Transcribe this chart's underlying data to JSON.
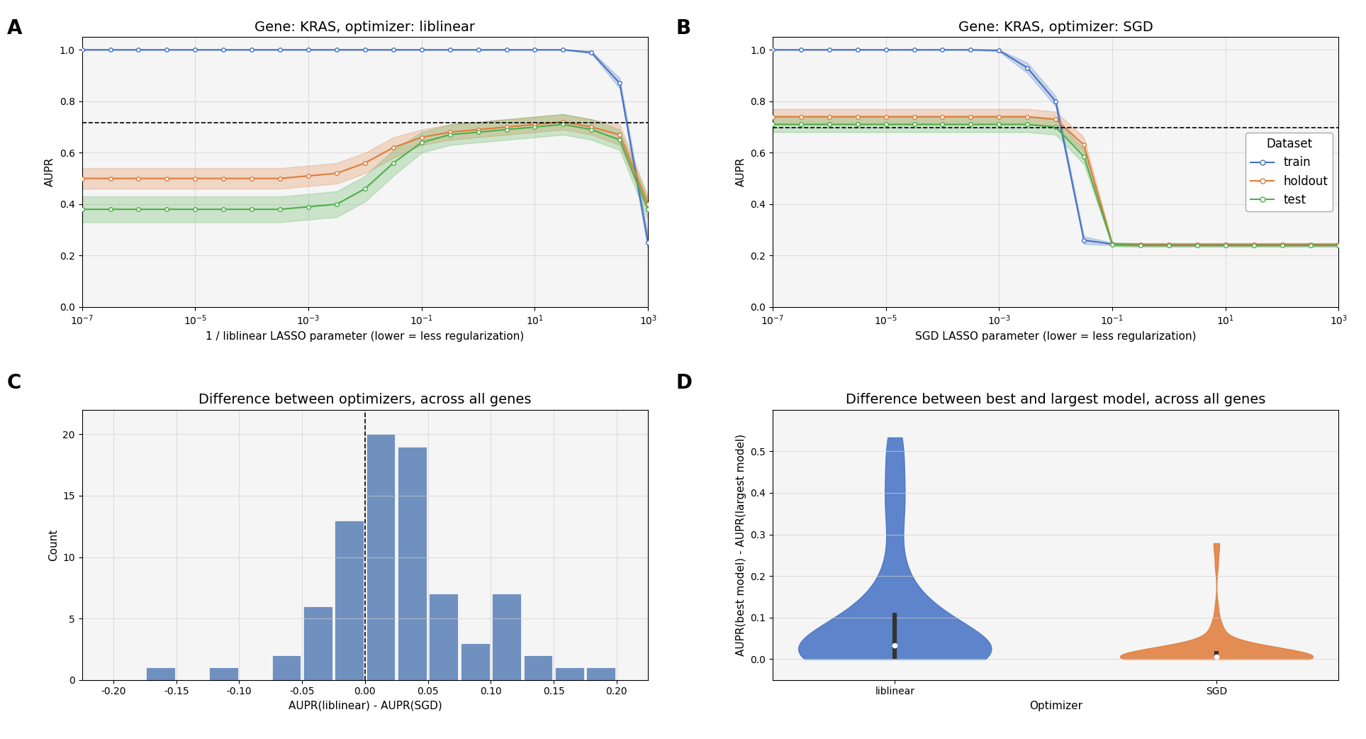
{
  "panel_A": {
    "title": "Gene: KRAS, optimizer: liblinear",
    "xlabel": "1 / liblinear LASSO parameter (lower = less regularization)",
    "ylabel": "AUPR",
    "ylim": [
      0.0,
      1.05
    ],
    "dashed_line_y": 0.718,
    "train": {
      "x": [
        -7,
        -6.5,
        -6,
        -5.5,
        -5,
        -4.5,
        -4,
        -3.5,
        -3,
        -2.5,
        -2,
        -1.5,
        -1,
        -0.5,
        0,
        0.5,
        1,
        1.5,
        2,
        2.5,
        3
      ],
      "y": [
        1.0,
        1.0,
        1.0,
        1.0,
        1.0,
        1.0,
        1.0,
        1.0,
        1.0,
        1.0,
        1.0,
        1.0,
        1.0,
        1.0,
        1.0,
        1.0,
        1.0,
        1.0,
        0.99,
        0.87,
        0.25
      ],
      "y_lower": [
        1.0,
        1.0,
        1.0,
        1.0,
        1.0,
        1.0,
        1.0,
        1.0,
        1.0,
        1.0,
        1.0,
        1.0,
        1.0,
        1.0,
        1.0,
        1.0,
        1.0,
        1.0,
        0.985,
        0.85,
        0.22
      ],
      "y_upper": [
        1.0,
        1.0,
        1.0,
        1.0,
        1.0,
        1.0,
        1.0,
        1.0,
        1.0,
        1.0,
        1.0,
        1.0,
        1.0,
        1.0,
        1.0,
        1.0,
        1.0,
        1.0,
        0.995,
        0.89,
        0.28
      ],
      "color": "#4472C4"
    },
    "holdout": {
      "x": [
        -7,
        -6.5,
        -6,
        -5.5,
        -5,
        -4.5,
        -4,
        -3.5,
        -3,
        -2.5,
        -2,
        -1.5,
        -1,
        -0.5,
        0,
        0.5,
        1,
        1.5,
        2,
        2.5,
        3
      ],
      "y": [
        0.5,
        0.5,
        0.5,
        0.5,
        0.5,
        0.5,
        0.5,
        0.5,
        0.51,
        0.52,
        0.56,
        0.62,
        0.66,
        0.68,
        0.69,
        0.7,
        0.71,
        0.72,
        0.7,
        0.67,
        0.4
      ],
      "y_lower": [
        0.46,
        0.46,
        0.46,
        0.46,
        0.46,
        0.46,
        0.46,
        0.46,
        0.47,
        0.48,
        0.52,
        0.58,
        0.63,
        0.65,
        0.66,
        0.67,
        0.68,
        0.69,
        0.67,
        0.63,
        0.37
      ],
      "y_upper": [
        0.54,
        0.54,
        0.54,
        0.54,
        0.54,
        0.54,
        0.54,
        0.54,
        0.55,
        0.56,
        0.6,
        0.66,
        0.69,
        0.71,
        0.72,
        0.73,
        0.74,
        0.75,
        0.73,
        0.71,
        0.43
      ],
      "color": "#E07B39"
    },
    "test": {
      "x": [
        -7,
        -6.5,
        -6,
        -5.5,
        -5,
        -4.5,
        -4,
        -3.5,
        -3,
        -2.5,
        -2,
        -1.5,
        -1,
        -0.5,
        0,
        0.5,
        1,
        1.5,
        2,
        2.5,
        3
      ],
      "y": [
        0.38,
        0.38,
        0.38,
        0.38,
        0.38,
        0.38,
        0.38,
        0.38,
        0.39,
        0.4,
        0.46,
        0.56,
        0.64,
        0.67,
        0.68,
        0.69,
        0.7,
        0.71,
        0.69,
        0.65,
        0.38
      ],
      "y_lower": [
        0.33,
        0.33,
        0.33,
        0.33,
        0.33,
        0.33,
        0.33,
        0.33,
        0.34,
        0.35,
        0.41,
        0.51,
        0.6,
        0.63,
        0.64,
        0.65,
        0.66,
        0.67,
        0.65,
        0.61,
        0.34
      ],
      "y_upper": [
        0.43,
        0.43,
        0.43,
        0.43,
        0.43,
        0.43,
        0.43,
        0.43,
        0.44,
        0.45,
        0.51,
        0.61,
        0.68,
        0.71,
        0.72,
        0.73,
        0.74,
        0.75,
        0.73,
        0.69,
        0.42
      ],
      "color": "#4DAF4A"
    }
  },
  "panel_B": {
    "title": "Gene: KRAS, optimizer: SGD",
    "xlabel": "SGD LASSO parameter (lower = less regularization)",
    "ylabel": "AUPR",
    "ylim": [
      0.0,
      1.05
    ],
    "dashed_line_y": 0.697,
    "train": {
      "x": [
        -7,
        -6.5,
        -6,
        -5.5,
        -5,
        -4.5,
        -4,
        -3.5,
        -3,
        -2.5,
        -2,
        -1.5,
        -1,
        -0.5,
        0,
        0.5,
        1,
        1.5,
        2,
        2.5,
        3
      ],
      "y": [
        1.0,
        1.0,
        1.0,
        1.0,
        1.0,
        1.0,
        1.0,
        1.0,
        0.998,
        0.93,
        0.8,
        0.26,
        0.245,
        0.243,
        0.243,
        0.243,
        0.243,
        0.243,
        0.243,
        0.243,
        0.243
      ],
      "y_lower": [
        1.0,
        1.0,
        1.0,
        1.0,
        1.0,
        1.0,
        1.0,
        1.0,
        0.993,
        0.91,
        0.78,
        0.245,
        0.24,
        0.238,
        0.238,
        0.238,
        0.238,
        0.238,
        0.238,
        0.238,
        0.238
      ],
      "y_upper": [
        1.0,
        1.0,
        1.0,
        1.0,
        1.0,
        1.0,
        1.0,
        1.0,
        1.0,
        0.95,
        0.82,
        0.275,
        0.25,
        0.248,
        0.248,
        0.248,
        0.248,
        0.248,
        0.248,
        0.248,
        0.248
      ],
      "color": "#4472C4"
    },
    "holdout": {
      "x": [
        -7,
        -6.5,
        -6,
        -5.5,
        -5,
        -4.5,
        -4,
        -3.5,
        -3,
        -2.5,
        -2,
        -1.5,
        -1,
        -0.5,
        0,
        0.5,
        1,
        1.5,
        2,
        2.5,
        3
      ],
      "y": [
        0.74,
        0.74,
        0.74,
        0.74,
        0.74,
        0.74,
        0.74,
        0.74,
        0.74,
        0.74,
        0.73,
        0.63,
        0.245,
        0.243,
        0.243,
        0.243,
        0.243,
        0.243,
        0.243,
        0.243,
        0.243
      ],
      "y_lower": [
        0.71,
        0.71,
        0.71,
        0.71,
        0.71,
        0.71,
        0.71,
        0.71,
        0.71,
        0.71,
        0.7,
        0.6,
        0.24,
        0.238,
        0.238,
        0.238,
        0.238,
        0.238,
        0.238,
        0.238,
        0.238
      ],
      "y_upper": [
        0.77,
        0.77,
        0.77,
        0.77,
        0.77,
        0.77,
        0.77,
        0.77,
        0.77,
        0.77,
        0.76,
        0.66,
        0.25,
        0.248,
        0.248,
        0.248,
        0.248,
        0.248,
        0.248,
        0.248,
        0.248
      ],
      "color": "#E07B39"
    },
    "test": {
      "x": [
        -7,
        -6.5,
        -6,
        -5.5,
        -5,
        -4.5,
        -4,
        -3.5,
        -3,
        -2.5,
        -2,
        -1.5,
        -1,
        -0.5,
        0,
        0.5,
        1,
        1.5,
        2,
        2.5,
        3
      ],
      "y": [
        0.71,
        0.71,
        0.71,
        0.71,
        0.71,
        0.71,
        0.71,
        0.71,
        0.71,
        0.71,
        0.7,
        0.585,
        0.243,
        0.24,
        0.24,
        0.24,
        0.24,
        0.24,
        0.24,
        0.24,
        0.24
      ],
      "y_lower": [
        0.68,
        0.68,
        0.68,
        0.68,
        0.68,
        0.68,
        0.68,
        0.68,
        0.68,
        0.68,
        0.67,
        0.555,
        0.236,
        0.234,
        0.234,
        0.234,
        0.234,
        0.234,
        0.234,
        0.234,
        0.234
      ],
      "y_upper": [
        0.74,
        0.74,
        0.74,
        0.74,
        0.74,
        0.74,
        0.74,
        0.74,
        0.74,
        0.74,
        0.73,
        0.615,
        0.25,
        0.246,
        0.246,
        0.246,
        0.246,
        0.246,
        0.246,
        0.246,
        0.246
      ],
      "color": "#4DAF4A"
    }
  },
  "panel_C": {
    "title": "Difference between optimizers, across all genes",
    "xlabel": "AUPR(liblinear) - AUPR(SGD)",
    "ylabel": "Count",
    "bar_color": "#7090C0",
    "bar_width": 0.025,
    "bar_centers": [
      -0.1875,
      -0.1625,
      -0.1375,
      -0.1125,
      -0.0875,
      -0.0625,
      -0.0375,
      -0.0125,
      0.0125,
      0.0375,
      0.0625,
      0.0875,
      0.1125,
      0.1375,
      0.1625,
      0.1875
    ],
    "bar_counts": [
      0,
      1,
      0,
      1,
      0,
      2,
      6,
      13,
      20,
      19,
      7,
      3,
      7,
      2,
      1,
      1
    ],
    "dashed_line_x": 0.0,
    "xlim": [
      -0.225,
      0.225
    ],
    "ylim": [
      0,
      22
    ],
    "yticks": [
      0,
      5,
      10,
      15,
      20
    ],
    "xticks": [
      -0.2,
      -0.15,
      -0.1,
      -0.05,
      0.0,
      0.05,
      0.1,
      0.15,
      0.2
    ],
    "xtick_labels": [
      "-0.20",
      "-0.15",
      "-0.10",
      "-0.05",
      "0.00",
      "0.05",
      "0.10",
      "0.15",
      "0.20"
    ]
  },
  "panel_D": {
    "title": "Difference between best and largest model, across all genes",
    "xlabel": "Optimizer",
    "ylabel": "AUPR(best model) - AUPR(largest model)",
    "violin_labels": [
      "liblinear",
      "SGD"
    ],
    "liblinear_color": "#4472C4",
    "sgd_color": "#E07B39",
    "ylim": [
      -0.05,
      0.6
    ],
    "yticks": [
      0.0,
      0.1,
      0.2,
      0.3,
      0.4,
      0.5
    ]
  },
  "colors": {
    "train": "#4472C4",
    "holdout": "#E07B39",
    "test": "#4DAF4A",
    "background": "#FFFFFF",
    "grid": "#D0D0D0"
  },
  "panel_label_fontsize": 20,
  "title_fontsize": 14,
  "axis_label_fontsize": 11,
  "tick_fontsize": 10,
  "legend_fontsize": 12
}
